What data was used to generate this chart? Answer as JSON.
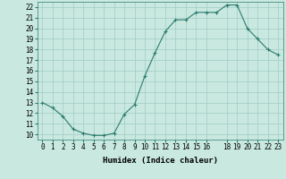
{
  "x": [
    0,
    1,
    2,
    3,
    4,
    5,
    6,
    7,
    8,
    9,
    10,
    11,
    12,
    13,
    14,
    15,
    16,
    17,
    18,
    19,
    20,
    21,
    22,
    23
  ],
  "y": [
    13,
    12.5,
    11.7,
    10.5,
    10.1,
    9.9,
    9.9,
    10.1,
    11.9,
    12.8,
    15.5,
    17.7,
    19.7,
    20.8,
    20.8,
    21.5,
    21.5,
    21.5,
    22.2,
    22.2,
    20.0,
    19.0,
    18.0,
    17.5
  ],
  "xlabel": "Humidex (Indice chaleur)",
  "xlim": [
    -0.5,
    23.5
  ],
  "ylim": [
    9.5,
    22.5
  ],
  "yticks": [
    10,
    11,
    12,
    13,
    14,
    15,
    16,
    17,
    18,
    19,
    20,
    21,
    22
  ],
  "xticks": [
    0,
    1,
    2,
    3,
    4,
    5,
    6,
    7,
    8,
    9,
    10,
    11,
    12,
    13,
    14,
    15,
    16,
    18,
    19,
    20,
    21,
    22,
    23
  ],
  "xtick_labels": [
    "0",
    "1",
    "2",
    "3",
    "4",
    "5",
    "6",
    "7",
    "8",
    "9",
    "10",
    "11",
    "12",
    "13",
    "14",
    "15",
    "16",
    "18",
    "19",
    "20",
    "21",
    "22",
    "23"
  ],
  "line_color": "#2d7b6e",
  "marker": "+",
  "bg_color": "#c8e8e0",
  "grid_color": "#a0ccc4",
  "label_fontsize": 6.5,
  "tick_fontsize": 5.5
}
